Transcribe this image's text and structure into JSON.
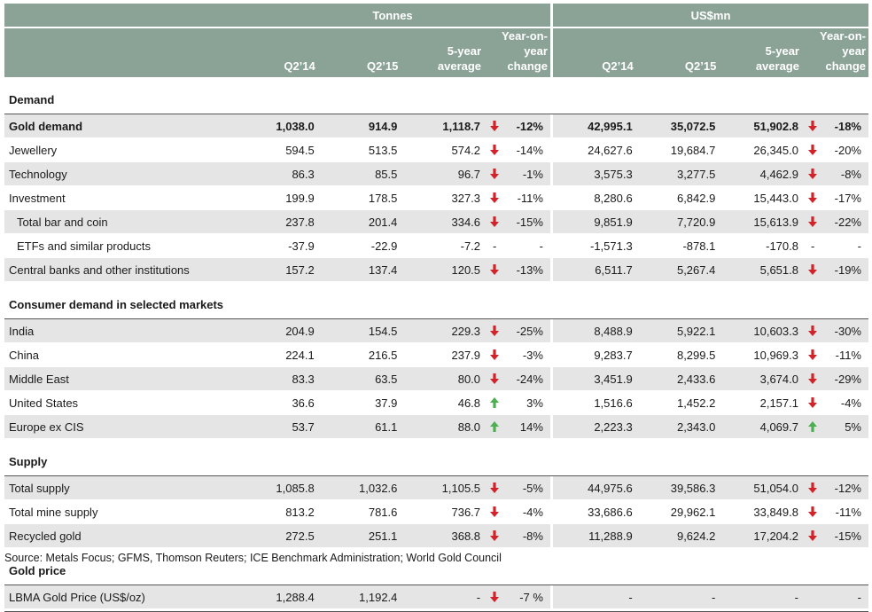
{
  "header": {
    "group_tonnes": "Tonnes",
    "group_usd": "US$mn",
    "tonnes_cols": [
      "Q2’14",
      "Q2’15"
    ],
    "tonnes_avg": [
      "5-year",
      "average"
    ],
    "tonnes_yoy": [
      "Year-on-",
      "year change"
    ],
    "usd_cols": [
      "Q2’14",
      "Q2’15"
    ],
    "usd_avg": [
      "5-year",
      "average"
    ],
    "usd_yoy": [
      "Year-on-",
      "year change"
    ]
  },
  "colors": {
    "header_bg": "#8ba397",
    "shade": "#e5e5e5",
    "down": "#d2232a",
    "up": "#4caf50"
  },
  "sections": [
    {
      "title": "Demand",
      "rows": [
        {
          "label": "Gold demand",
          "bold": true,
          "t1": "1,038.0",
          "t2": "914.9",
          "t3": "1,118.7",
          "t_dir": "down",
          "t_chg": "-12%",
          "u1": "42,995.1",
          "u2": "35,072.5",
          "u3": "51,902.8",
          "u_dir": "down",
          "u_chg": "-18%"
        },
        {
          "label": "Jewellery",
          "t1": "594.5",
          "t2": "513.5",
          "t3": "574.2",
          "t_dir": "down",
          "t_chg": "-14%",
          "u1": "24,627.6",
          "u2": "19,684.7",
          "u3": "26,345.0",
          "u_dir": "down",
          "u_chg": "-20%"
        },
        {
          "label": "Technology",
          "t1": "86.3",
          "t2": "85.5",
          "t3": "96.7",
          "t_dir": "down",
          "t_chg": "-1%",
          "u1": "3,575.3",
          "u2": "3,277.5",
          "u3": "4,462.9",
          "u_dir": "down",
          "u_chg": "-8%"
        },
        {
          "label": "Investment",
          "t1": "199.9",
          "t2": "178.5",
          "t3": "327.3",
          "t_dir": "down",
          "t_chg": "-11%",
          "u1": "8,280.6",
          "u2": "6,842.9",
          "u3": "15,443.0",
          "u_dir": "down",
          "u_chg": "-17%"
        },
        {
          "label": "Total bar and coin",
          "indent": true,
          "t1": "237.8",
          "t2": "201.4",
          "t3": "334.6",
          "t_dir": "down",
          "t_chg": "-15%",
          "u1": "9,851.9",
          "u2": "7,720.9",
          "u3": "15,613.9",
          "u_dir": "down",
          "u_chg": "-22%"
        },
        {
          "label": "ETFs and similar products",
          "indent": true,
          "t1": "-37.9",
          "t2": "-22.9",
          "t3": "-7.2",
          "t_dir": "dash",
          "t_chg": "-",
          "t_mark": "-",
          "u1": "-1,571.3",
          "u2": "-878.1",
          "u3": "-170.8",
          "u_dir": "dash",
          "u_chg": "-",
          "u_mark": "-"
        },
        {
          "label": "Central banks and other institutions",
          "t1": "157.2",
          "t2": "137.4",
          "t3": "120.5",
          "t_dir": "down",
          "t_chg": "-13%",
          "u1": "6,511.7",
          "u2": "5,267.4",
          "u3": "5,651.8",
          "u_dir": "down",
          "u_chg": "-19%"
        }
      ]
    },
    {
      "title": "Consumer demand in selected markets",
      "rows": [
        {
          "label": "India",
          "t1": "204.9",
          "t2": "154.5",
          "t3": "229.3",
          "t_dir": "down",
          "t_chg": "-25%",
          "u1": "8,488.9",
          "u2": "5,922.1",
          "u3": "10,603.3",
          "u_dir": "down",
          "u_chg": "-30%"
        },
        {
          "label": "China",
          "t1": "224.1",
          "t2": "216.5",
          "t3": "237.9",
          "t_dir": "down",
          "t_chg": "-3%",
          "u1": "9,283.7",
          "u2": "8,299.5",
          "u3": "10,969.3",
          "u_dir": "down",
          "u_chg": "-11%"
        },
        {
          "label": "Middle East",
          "t1": "83.3",
          "t2": "63.5",
          "t3": "80.0",
          "t_dir": "down",
          "t_chg": "-24%",
          "u1": "3,451.9",
          "u2": "2,433.6",
          "u3": "3,674.0",
          "u_dir": "down",
          "u_chg": "-29%"
        },
        {
          "label": "United States",
          "t1": "36.6",
          "t2": "37.9",
          "t3": "46.8",
          "t_dir": "up",
          "t_chg": "3%",
          "u1": "1,516.6",
          "u2": "1,452.2",
          "u3": "2,157.1",
          "u_dir": "down",
          "u_chg": "-4%"
        },
        {
          "label": "Europe ex CIS",
          "t1": "53.7",
          "t2": "61.1",
          "t3": "88.0",
          "t_dir": "up",
          "t_chg": "14%",
          "u1": "2,223.3",
          "u2": "2,343.0",
          "u3": "4,069.7",
          "u_dir": "up",
          "u_chg": "5%"
        }
      ]
    },
    {
      "title": "Supply",
      "rows": [
        {
          "label": "Total supply",
          "t1": "1,085.8",
          "t2": "1,032.6",
          "t3": "1,105.5",
          "t_dir": "down",
          "t_chg": "-5%",
          "u1": "44,975.6",
          "u2": "39,586.3",
          "u3": "51,054.0",
          "u_dir": "down",
          "u_chg": "-12%"
        },
        {
          "label": "Total mine supply",
          "t1": "813.2",
          "t2": "781.6",
          "t3": "736.7",
          "t_dir": "down",
          "t_chg": "-4%",
          "u1": "33,686.6",
          "u2": "29,962.1",
          "u3": "33,849.8",
          "u_dir": "down",
          "u_chg": "-11%"
        },
        {
          "label": "Recycled gold",
          "t1": "272.5",
          "t2": "251.1",
          "t3": "368.8",
          "t_dir": "down",
          "t_chg": "-8%",
          "u1": "11,288.9",
          "u2": "9,624.2",
          "u3": "17,204.2",
          "u_dir": "down",
          "u_chg": "-15%"
        }
      ]
    },
    {
      "title": "Gold price",
      "rows": [
        {
          "label": "LBMA Gold Price (US$/oz)",
          "t1": "1,288.4",
          "t2": "1,192.4",
          "t3": "-",
          "t_dir": "down",
          "t_chg": "-7 %",
          "u1": "-",
          "u2": "-",
          "u3": "-",
          "u_dir": "none",
          "u_chg": "-"
        }
      ]
    }
  ],
  "source": "Source: Metals Focus; GFMS, Thomson Reuters; ICE Benchmark Administration; World Gold Council"
}
